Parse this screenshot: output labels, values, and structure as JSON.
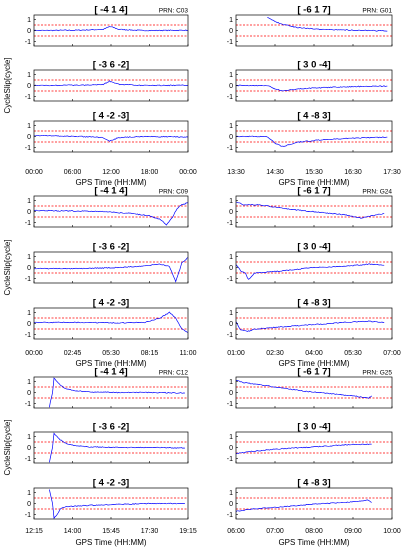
{
  "figure": {
    "x_axis_label": "GPS Time (HH:MM)",
    "y_axis_label": "CycleSlip[cycle]"
  },
  "chart_data": [
    {
      "type": "line",
      "prn": "PRN: C03",
      "x_ticks": [
        "00:00",
        "06:00",
        "12:00",
        "18:00",
        "00:00"
      ],
      "y_ticks": [
        "1",
        "0",
        "-1"
      ],
      "ylim": [
        -1,
        1
      ],
      "thresholds": [
        0.5,
        -0.5
      ],
      "grid": false,
      "colors": {
        "series": "#0000ff",
        "threshold": "#ff0000"
      },
      "panels": [
        {
          "title": "[ -4 1 4]",
          "x": [
            0,
            0.3,
            0.45,
            0.49,
            0.51,
            0.55,
            0.7,
            1.0
          ],
          "y": [
            0.0,
            0.03,
            0.1,
            0.35,
            0.3,
            0.1,
            0.0,
            0.02
          ]
        },
        {
          "title": "[ -3 6 -2]",
          "x": [
            0,
            0.3,
            0.45,
            0.49,
            0.51,
            0.55,
            0.7,
            1.0
          ],
          "y": [
            0.0,
            0.03,
            0.1,
            0.4,
            0.3,
            0.1,
            0.0,
            0.02
          ]
        },
        {
          "title": "[ 4 -2 -3]",
          "x": [
            0,
            0.3,
            0.45,
            0.49,
            0.51,
            0.55,
            0.7,
            1.0
          ],
          "y": [
            0.1,
            0.0,
            -0.1,
            -0.4,
            -0.3,
            -0.1,
            0.0,
            -0.05
          ]
        }
      ]
    },
    {
      "type": "line",
      "prn": "PRN: G01",
      "x_ticks": [
        "13:30",
        "14:30",
        "15:30",
        "16:30",
        "17:30"
      ],
      "y_ticks": [
        "1",
        "0",
        "-1"
      ],
      "ylim": [
        -1,
        1
      ],
      "thresholds": [
        0.5,
        -0.5
      ],
      "grid": false,
      "colors": {
        "series": "#0000ff",
        "threshold": "#ff0000"
      },
      "panels": [
        {
          "title": "[ -6 1 7]",
          "x": [
            0.2,
            0.25,
            0.3,
            0.4,
            0.55,
            0.7,
            0.85,
            0.97
          ],
          "y": [
            1.2,
            0.8,
            0.55,
            0.25,
            0.1,
            0.05,
            0.0,
            -0.05
          ]
        },
        {
          "title": "[ 3 0 -4]",
          "x": [
            0,
            0.2,
            0.25,
            0.3,
            0.4,
            0.55,
            0.75,
            0.97
          ],
          "y": [
            0.0,
            0.0,
            -0.3,
            -0.5,
            -0.3,
            -0.2,
            -0.1,
            -0.05
          ]
        },
        {
          "title": "[ 4 -8 3]",
          "x": [
            0,
            0.2,
            0.25,
            0.3,
            0.4,
            0.55,
            0.75,
            0.97
          ],
          "y": [
            0.0,
            0.0,
            -0.6,
            -0.9,
            -0.5,
            -0.3,
            -0.15,
            -0.05
          ]
        }
      ]
    },
    {
      "type": "line",
      "prn": "PRN: C09",
      "x_ticks": [
        "00:00",
        "02:45",
        "05:30",
        "08:15",
        "11:00"
      ],
      "y_ticks": [
        "1",
        "0",
        "-1"
      ],
      "ylim": [
        -1,
        1
      ],
      "thresholds": [
        0.5,
        -0.5
      ],
      "grid": false,
      "colors": {
        "series": "#0000ff",
        "threshold": "#ff0000"
      },
      "panels": [
        {
          "title": "[ -4 1 4]",
          "x": [
            0,
            0.2,
            0.45,
            0.65,
            0.75,
            0.82,
            0.86,
            0.9,
            0.93,
            0.96,
            1.0
          ],
          "y": [
            0.1,
            0.05,
            0.0,
            -0.2,
            -0.4,
            -0.7,
            -1.2,
            -0.5,
            0.3,
            0.6,
            0.8
          ]
        },
        {
          "title": "[ -3 6 -2]",
          "x": [
            0,
            0.3,
            0.55,
            0.72,
            0.82,
            0.88,
            0.92,
            0.96,
            1.0
          ],
          "y": [
            -0.1,
            -0.1,
            0.0,
            0.15,
            0.3,
            0.1,
            -1.3,
            0.4,
            0.9
          ]
        },
        {
          "title": "[ 4 -2 -3]",
          "x": [
            0,
            0.3,
            0.55,
            0.72,
            0.82,
            0.88,
            0.92,
            0.96,
            1.0
          ],
          "y": [
            0.1,
            0.1,
            0.05,
            0.1,
            0.5,
            1.0,
            0.5,
            -0.5,
            -0.8
          ]
        }
      ]
    },
    {
      "type": "line",
      "prn": "PRN: G24",
      "x_ticks": [
        "01:00",
        "02:30",
        "04:00",
        "05:30",
        "07:00"
      ],
      "y_ticks": [
        "1",
        "0",
        "-1"
      ],
      "ylim": [
        -1,
        1
      ],
      "thresholds": [
        0.5,
        -0.5
      ],
      "grid": false,
      "colors": {
        "series": "#0000ff",
        "threshold": "#ff0000"
      },
      "panels": [
        {
          "title": "[ -6 1 7]",
          "x": [
            0,
            0.05,
            0.15,
            0.35,
            0.55,
            0.7,
            0.8,
            0.9,
            0.95
          ],
          "y": [
            0.9,
            0.6,
            0.6,
            0.2,
            -0.1,
            -0.3,
            -0.6,
            -0.3,
            -0.2
          ]
        },
        {
          "title": "[ 3 0 -4]",
          "x": [
            0,
            0.03,
            0.06,
            0.08,
            0.12,
            0.3,
            0.5,
            0.7,
            0.85,
            0.95
          ],
          "y": [
            0.3,
            -0.3,
            -0.5,
            -1.1,
            -0.5,
            -0.3,
            0.0,
            0.1,
            0.3,
            0.2
          ]
        },
        {
          "title": "[ 4 -8 3]",
          "x": [
            0,
            0.03,
            0.08,
            0.12,
            0.3,
            0.5,
            0.7,
            0.85,
            0.95
          ],
          "y": [
            0.2,
            -0.6,
            -0.7,
            -0.5,
            -0.3,
            -0.1,
            0.1,
            0.2,
            0.1
          ]
        }
      ]
    },
    {
      "type": "line",
      "prn": "PRN: C12",
      "x_ticks": [
        "12:15",
        "14:00",
        "15:45",
        "17:30",
        "19:15"
      ],
      "y_ticks": [
        "1",
        "0",
        "-1"
      ],
      "ylim": [
        -1,
        1
      ],
      "thresholds": [
        0.5,
        -0.5
      ],
      "grid": false,
      "colors": {
        "series": "#0000ff",
        "threshold": "#ff0000"
      },
      "panels": [
        {
          "title": "[ -4 1 4]",
          "x": [
            0.1,
            0.12,
            0.13,
            0.15,
            0.17,
            0.2,
            0.25,
            0.35,
            0.55,
            0.75,
            0.98
          ],
          "y": [
            -1.3,
            0.0,
            1.3,
            1.0,
            0.7,
            0.4,
            0.2,
            0.05,
            0.0,
            0.0,
            -0.05
          ]
        },
        {
          "title": "[ -3 6 -2]",
          "x": [
            0.1,
            0.12,
            0.13,
            0.15,
            0.17,
            0.2,
            0.25,
            0.35,
            0.55,
            0.75,
            0.98
          ],
          "y": [
            -1.3,
            0.0,
            1.3,
            1.0,
            0.7,
            0.4,
            0.2,
            0.05,
            0.0,
            0.0,
            -0.05
          ]
        },
        {
          "title": "[ 4 -2 -3]",
          "x": [
            0.1,
            0.12,
            0.13,
            0.15,
            0.17,
            0.2,
            0.3,
            0.5,
            0.75,
            0.98
          ],
          "y": [
            1.3,
            0.0,
            -1.3,
            -1.0,
            -0.5,
            -0.3,
            -0.2,
            -0.1,
            0.0,
            0.0
          ]
        }
      ]
    },
    {
      "type": "line",
      "prn": "PRN: G25",
      "x_ticks": [
        "06:00",
        "07:00",
        "08:00",
        "09:00",
        "10:00"
      ],
      "y_ticks": [
        "1",
        "0",
        "-1"
      ],
      "ylim": [
        -1,
        1
      ],
      "thresholds": [
        0.5,
        -0.5
      ],
      "grid": false,
      "colors": {
        "series": "#0000ff",
        "threshold": "#ff0000"
      },
      "panels": [
        {
          "title": "[ -6 1 7]",
          "x": [
            0,
            0.05,
            0.15,
            0.3,
            0.45,
            0.6,
            0.75,
            0.85,
            0.87
          ],
          "y": [
            1.1,
            0.9,
            0.7,
            0.4,
            0.1,
            -0.1,
            -0.3,
            -0.5,
            -0.3
          ]
        },
        {
          "title": "[ 3 0 -4]",
          "x": [
            0,
            0.1,
            0.3,
            0.5,
            0.7,
            0.87
          ],
          "y": [
            -0.55,
            -0.35,
            -0.1,
            0.05,
            0.25,
            0.3
          ]
        },
        {
          "title": "[ 4 -8 3]",
          "x": [
            0,
            0.1,
            0.3,
            0.5,
            0.7,
            0.85,
            0.87
          ],
          "y": [
            -0.7,
            -0.5,
            -0.3,
            -0.05,
            0.1,
            0.3,
            0.1
          ]
        }
      ]
    }
  ]
}
